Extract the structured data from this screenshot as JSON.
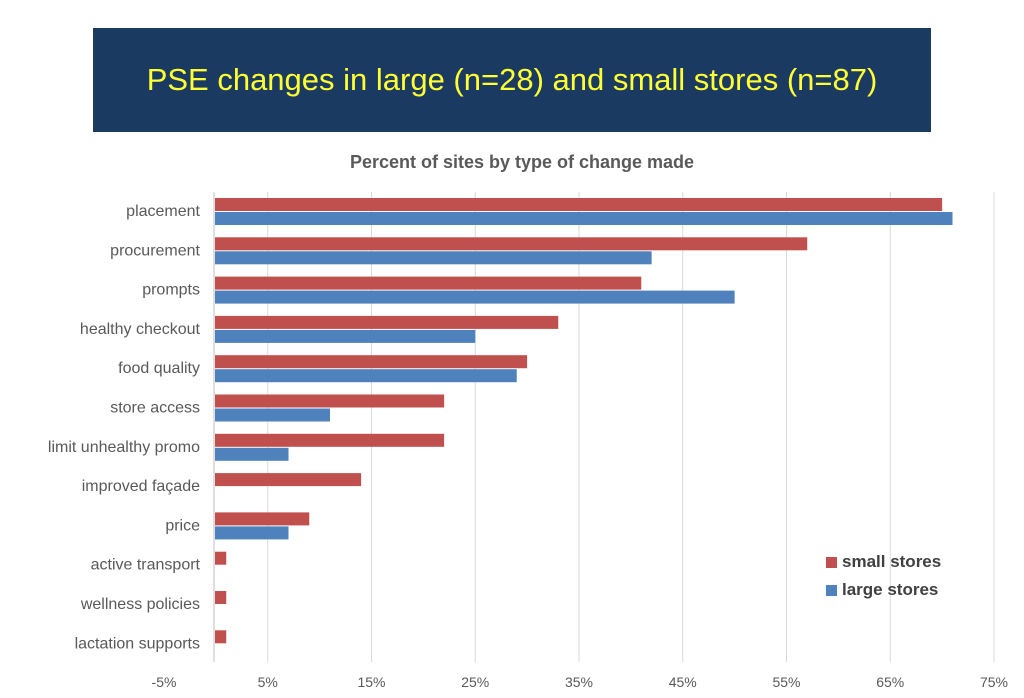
{
  "banner": {
    "title": "PSE changes in large (n=28) and small stores (n=87)"
  },
  "colors": {
    "banner_bg": "#1b3a61",
    "banner_text": "#ffff33",
    "small": "#c0504d",
    "large": "#4f81bd"
  },
  "chart_data": {
    "type": "bar",
    "orientation": "horizontal",
    "title": "Percent of sites by type of change made",
    "xlabel": "",
    "ylabel": "",
    "categories": [
      "placement",
      "procurement",
      "prompts",
      "healthy checkout",
      "food quality",
      "store access",
      "limit unhealthy promo",
      "improved façade",
      "price",
      "active transport",
      "wellness policies",
      "lactation supports"
    ],
    "series": [
      {
        "name": "small stores",
        "color": "#c0504d",
        "values": [
          70,
          57,
          41,
          33,
          30,
          22,
          22,
          14,
          9,
          1,
          1,
          1
        ]
      },
      {
        "name": "large stores",
        "color": "#4f81bd",
        "values": [
          71,
          42,
          50,
          25,
          29,
          11,
          7,
          0,
          7,
          0,
          0,
          0
        ]
      }
    ],
    "xlim": [
      -5,
      75
    ],
    "xticks": [
      "-5%",
      "5%",
      "15%",
      "25%",
      "35%",
      "45%",
      "55%",
      "65%",
      "75%"
    ],
    "tick_values": [
      -5,
      5,
      15,
      25,
      35,
      45,
      55,
      65,
      75
    ],
    "grid": true,
    "legend_position": "bottom-right"
  }
}
